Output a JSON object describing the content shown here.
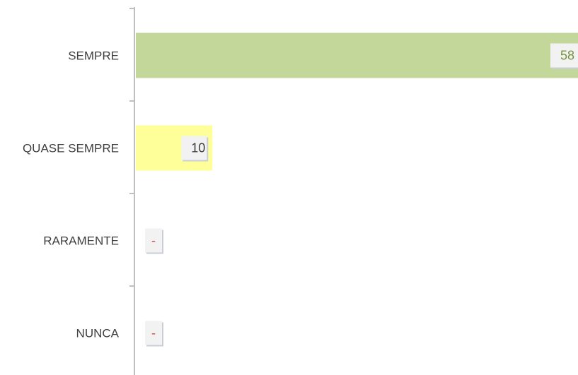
{
  "chart_data": {
    "type": "bar",
    "orientation": "horizontal",
    "categories": [
      "SEMPRE",
      "QUASE SEMPRE",
      "RARAMENTE",
      "NUNCA"
    ],
    "values": [
      58,
      10,
      0,
      0
    ],
    "data_labels": [
      "58",
      "10",
      "-",
      "-"
    ],
    "bar_colors": [
      "#c4d79b",
      "#ffff99",
      "#d9d9d9",
      "#d9d9d9"
    ],
    "label_colors": [
      "#76923c",
      "#404040",
      "#c0504d",
      "#c0504d"
    ],
    "axis_color": "#bfbfbf",
    "xlim": [
      0,
      58
    ],
    "title": "",
    "xlabel": "",
    "ylabel": "",
    "grid": false,
    "legend": "none"
  }
}
